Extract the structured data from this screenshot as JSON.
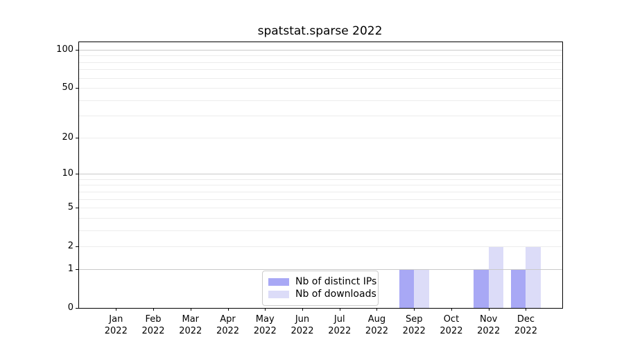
{
  "title": "spatstat.sparse 2022",
  "chart_data": {
    "type": "bar",
    "title": "spatstat.sparse 2022",
    "categories": [
      "Jan 2022",
      "Feb 2022",
      "Mar 2022",
      "Apr 2022",
      "May 2022",
      "Jun 2022",
      "Jul 2022",
      "Aug 2022",
      "Sep 2022",
      "Oct 2022",
      "Nov 2022",
      "Dec 2022"
    ],
    "series": [
      {
        "name": "Nb of distinct IPs",
        "color": "#a8a8f5",
        "values": [
          0,
          0,
          0,
          0,
          0,
          0,
          0,
          0,
          1,
          0,
          1,
          1
        ]
      },
      {
        "name": "Nb of downloads",
        "color": "#dcdcf8",
        "values": [
          0,
          0,
          0,
          0,
          0,
          0,
          0,
          0,
          1,
          0,
          2,
          2
        ]
      }
    ],
    "xlabel": "",
    "ylabel": "",
    "yscale": "log1p",
    "ylim": [
      0,
      115
    ],
    "yticks": [
      0,
      1,
      2,
      5,
      10,
      20,
      50,
      100
    ],
    "grid": {
      "major": [
        1,
        10,
        100
      ],
      "minor": [
        2,
        3,
        4,
        5,
        6,
        7,
        8,
        9,
        20,
        30,
        40,
        50,
        60,
        70,
        80,
        90
      ],
      "on": true
    },
    "legend_position": "lower center inside plot",
    "colors": {
      "major_grid": "#c9c9c9",
      "minor_grid": "#ececec",
      "spine": "#000000",
      "background": "#ffffff"
    }
  }
}
